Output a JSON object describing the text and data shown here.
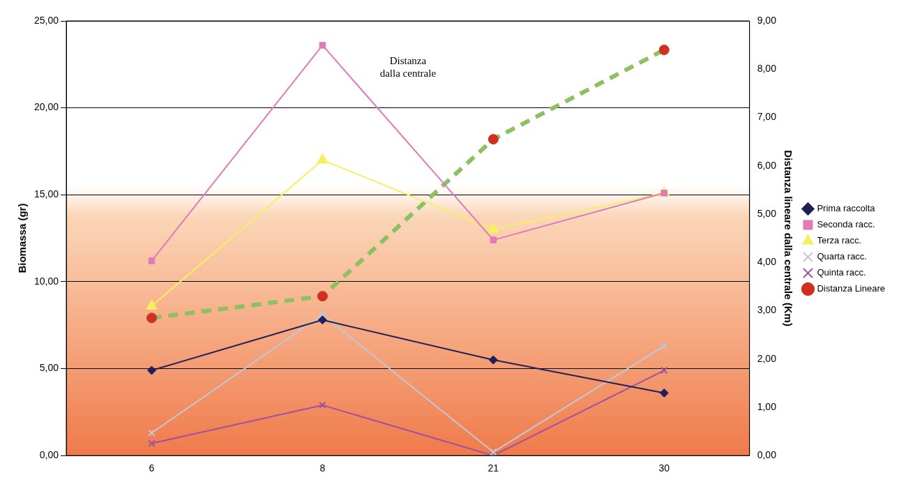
{
  "chart_data": {
    "type": "line",
    "ylabel": "Biomassa (gr)",
    "y2label": "Distanza lineare dalla centrale (Km)",
    "categories": [
      "6",
      "8",
      "21",
      "30"
    ],
    "ylim": [
      0,
      25
    ],
    "yticks": [
      {
        "value": 0,
        "label": "0,00"
      },
      {
        "value": 5,
        "label": "5,00"
      },
      {
        "value": 10,
        "label": "10,00"
      },
      {
        "value": 15,
        "label": "15,00"
      },
      {
        "value": 20,
        "label": "20,00"
      },
      {
        "value": 25,
        "label": "25,00"
      }
    ],
    "y2lim": [
      0,
      9
    ],
    "y2ticks": [
      {
        "value": 0,
        "label": "0,00"
      },
      {
        "value": 1,
        "label": "1,00"
      },
      {
        "value": 2,
        "label": "2,00"
      },
      {
        "value": 3,
        "label": "3,00"
      },
      {
        "value": 4,
        "label": "4,00"
      },
      {
        "value": 5,
        "label": "5,00"
      },
      {
        "value": 6,
        "label": "6,00"
      },
      {
        "value": 7,
        "label": "7,00"
      },
      {
        "value": 8,
        "label": "8,00"
      },
      {
        "value": 9,
        "label": "9,00"
      }
    ],
    "series": [
      {
        "name": "Prima raccolta",
        "color": "#1f1f5a",
        "marker": "diamond",
        "values": [
          4.9,
          7.8,
          5.5,
          3.6
        ]
      },
      {
        "name": "Seconda racc.",
        "color": "#e07ab8",
        "marker": "square",
        "values": [
          11.2,
          23.6,
          12.4,
          15.1
        ]
      },
      {
        "name": "Terza racc.",
        "color": "#f5f060",
        "marker": "triangle",
        "values": [
          8.6,
          17.0,
          13.0,
          15.1
        ]
      },
      {
        "name": "Quarta racc.",
        "color": "#c0c8d8",
        "marker": "cross",
        "values": [
          1.3,
          8.1,
          0.2,
          6.3
        ]
      },
      {
        "name": "Quinta racc.",
        "color": "#a050a0",
        "marker": "cross",
        "values": [
          0.7,
          2.9,
          0.0,
          4.9
        ]
      },
      {
        "name": "Distanza Lineare",
        "color": "#8cc060",
        "marker": "circle",
        "line_style": "dashed",
        "axis": "y2",
        "values": [
          2.85,
          3.3,
          6.55,
          8.4
        ]
      }
    ],
    "annotations": [
      "Distanza dalla centrale"
    ],
    "grid": "y",
    "legend": "right"
  }
}
